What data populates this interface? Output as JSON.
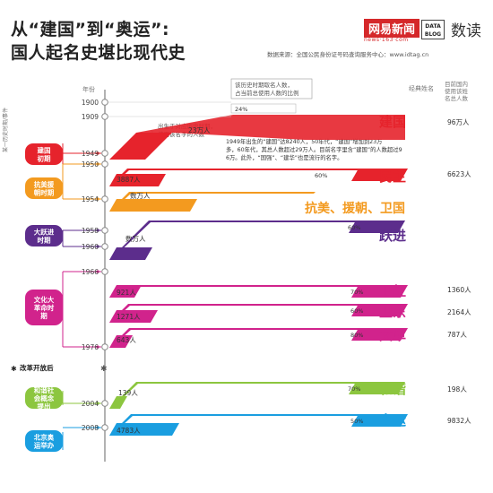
{
  "header": {
    "title_line1": "从“建国”到“奥运”:",
    "title_line2": "国人起名史堪比现代史",
    "logo_netease": "网易新闻",
    "logo_url": "news·163·com",
    "logo_datablog": "DATA BLOG",
    "logo_shudu": "数读",
    "source": "数据来源：全国公民身份证号码查询服务中心：www.idtag.cn"
  },
  "axis": {
    "year_label": "年份",
    "col_name_label": "经典姓名",
    "col_count_label": "目前国内使用该姓名总人数",
    "annotation_top": "该历史时期取名人数，占当前总使用人数的比例",
    "annotation_mid": "出生于对应历史时期，使用该名字的人数",
    "annotation_note": "1949年出生的“建国”达8240人，50年代，“建国”增加到23万多，60年代，其总人数超过29万人。目前名字里含“建国”的人数超过96万。此外，“国强”、“建华”也是流行的名字。",
    "years": [
      "1900",
      "1909",
      "1949",
      "1950",
      "1954",
      "1958",
      "1960",
      "1966",
      "1976",
      "2004",
      "2008"
    ]
  },
  "periods": [
    {
      "label": "建国初期",
      "color": "#e6232c"
    },
    {
      "label": "抗美援朝时期",
      "color": "#f39a1f"
    },
    {
      "label": "大跃进时期",
      "color": "#5c2d8c"
    },
    {
      "label": "文化大革命时期",
      "color": "#d1238c"
    },
    {
      "label": "和谐社会概念提出",
      "color": "#8cc63f"
    },
    {
      "label": "北京奥运举办",
      "color": "#1a9ee0"
    }
  ],
  "markers": {
    "gaige": "改革开放后",
    "side_bracket": "某一历史时期/事件"
  },
  "chart_data": {
    "type": "bar",
    "title": "从“建国”到“奥运”：国人起名史堪比现代史",
    "names": [
      "建国",
      "民主",
      "抗美、援朝、卫国",
      "跃进",
      "卫红",
      "卫东",
      "文革",
      "和谐",
      "奥运"
    ],
    "period_counts": [
      "23万人",
      "3887人",
      "数万人",
      "数万人",
      "921人",
      "1271人",
      "643人",
      "139人",
      "4783人"
    ],
    "period_share_pct": [
      24,
      60,
      null,
      60,
      70,
      60,
      80,
      70,
      50
    ],
    "total_counts": [
      "96万人",
      "6623人",
      "",
      "",
      "1360人",
      "2164人",
      "787人",
      "198人",
      "9832人"
    ],
    "start_years": [
      1949,
      1950,
      1954,
      1958,
      1966,
      1966,
      1966,
      2004,
      2008
    ]
  },
  "colors": {
    "red": "#e6232c",
    "orange": "#f39a1f",
    "purple": "#5c2d8c",
    "magenta": "#d1238c",
    "green": "#8cc63f",
    "blue": "#1a9ee0",
    "timeline": "#999999"
  }
}
